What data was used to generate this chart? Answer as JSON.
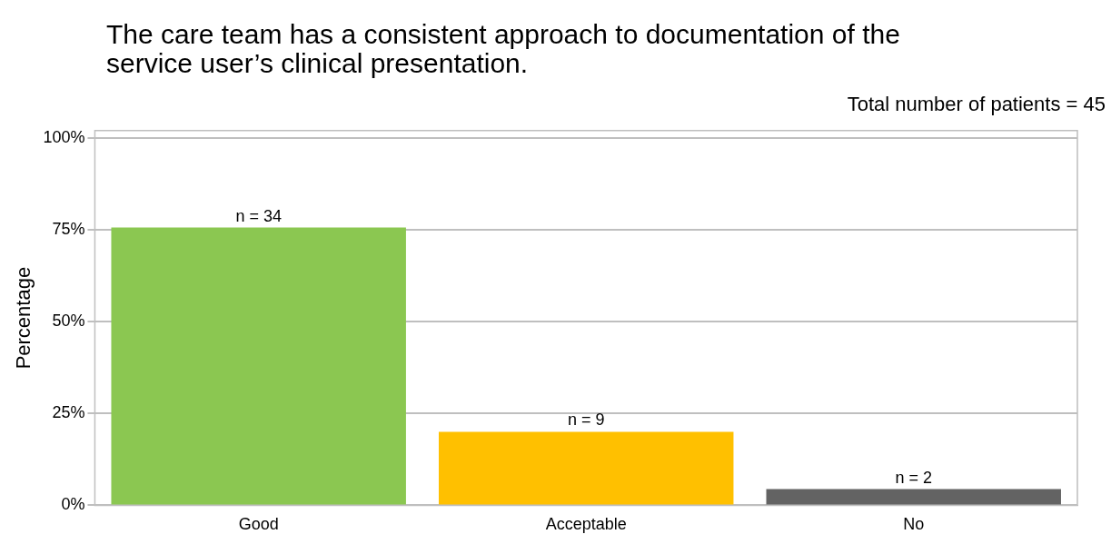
{
  "chart_data": {
    "type": "bar",
    "title": "The care team has a consistent approach to documentation of the service user’s clinical presentation.",
    "subtitle": "Total number of patients = 45",
    "ylabel": "Percentage",
    "categories": [
      "Good",
      "Acceptable",
      "No"
    ],
    "values": [
      75.6,
      20,
      4.4
    ],
    "colors": [
      "#8bc751",
      "#ffc000",
      "#636363"
    ],
    "annotations": [
      {
        "text": "n = 34",
        "x": "Good",
        "y": 75.6
      },
      {
        "text": "n = 9",
        "x": "Acceptable",
        "y": 20
      },
      {
        "text": "n = 2",
        "x": "No",
        "y": 4.4
      }
    ],
    "ylim": [
      0,
      102
    ],
    "yticks": [
      {
        "value": 0,
        "label": "0%"
      },
      {
        "value": 25,
        "label": "25%"
      },
      {
        "value": 50,
        "label": "50%"
      },
      {
        "value": 75,
        "label": "75%"
      },
      {
        "value": 100,
        "label": "100%"
      }
    ],
    "grid": "y",
    "legend": false
  }
}
